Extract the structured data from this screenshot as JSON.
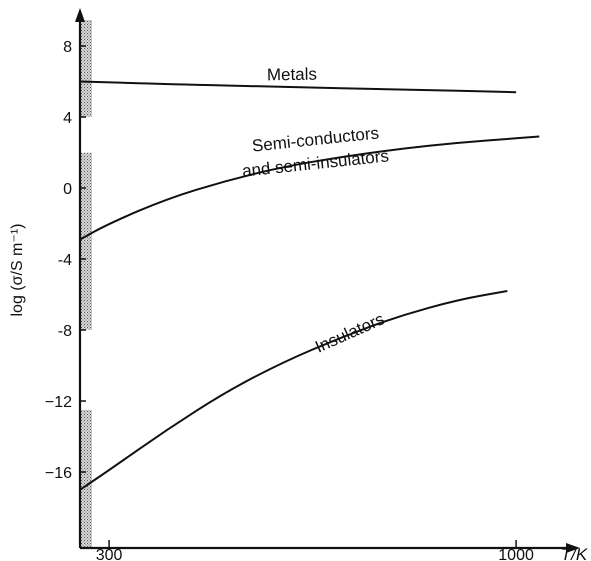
{
  "chart_data": {
    "type": "line",
    "xlabel": "T/K",
    "ylabel": "log (σ/S m⁻¹)",
    "x_ticks": [
      300,
      1000
    ],
    "y_ticks": [
      8,
      4,
      0,
      -4,
      -8,
      -12,
      -16
    ],
    "y_tick_labels": [
      "8",
      "4",
      "0",
      "-4",
      "-8",
      "−12",
      "−16"
    ],
    "xlim": [
      250,
      1060
    ],
    "ylim": [
      -21,
      10
    ],
    "grid": false,
    "series": [
      {
        "name": "Metals",
        "label_lines": [
          "Metals"
        ],
        "x": [
          250,
          400,
          600,
          800,
          1000
        ],
        "y": [
          6.0,
          5.85,
          5.7,
          5.55,
          5.4
        ]
      },
      {
        "name": "Semi-conductors and semi-insulators",
        "label_lines": [
          "Semi-conductors",
          "and semi-insulators"
        ],
        "x": [
          250,
          300,
          400,
          500,
          600,
          700,
          800,
          900,
          1000,
          1040
        ],
        "y": [
          -2.9,
          -2.0,
          -0.6,
          0.4,
          1.2,
          1.75,
          2.2,
          2.55,
          2.8,
          2.9
        ]
      },
      {
        "name": "Insulators",
        "label_lines": [
          "Insulators"
        ],
        "x": [
          250,
          300,
          400,
          500,
          600,
          700,
          800,
          900,
          985
        ],
        "y": [
          -17.0,
          -15.9,
          -13.6,
          -11.5,
          -9.8,
          -8.4,
          -7.2,
          -6.3,
          -5.8
        ]
      }
    ],
    "shaded_ranges_on_y_axis": [
      {
        "name": "Metals",
        "y": [
          4,
          9.5
        ]
      },
      {
        "name": "Semi-conductors and semi-insulators",
        "y": [
          -6.5,
          2.0
        ]
      },
      {
        "name": "Semi-conductors and semi-insulators (lower)",
        "y": [
          -8.0,
          -6.5
        ]
      },
      {
        "name": "Insulators",
        "y": [
          -21,
          -12.5
        ]
      }
    ]
  }
}
